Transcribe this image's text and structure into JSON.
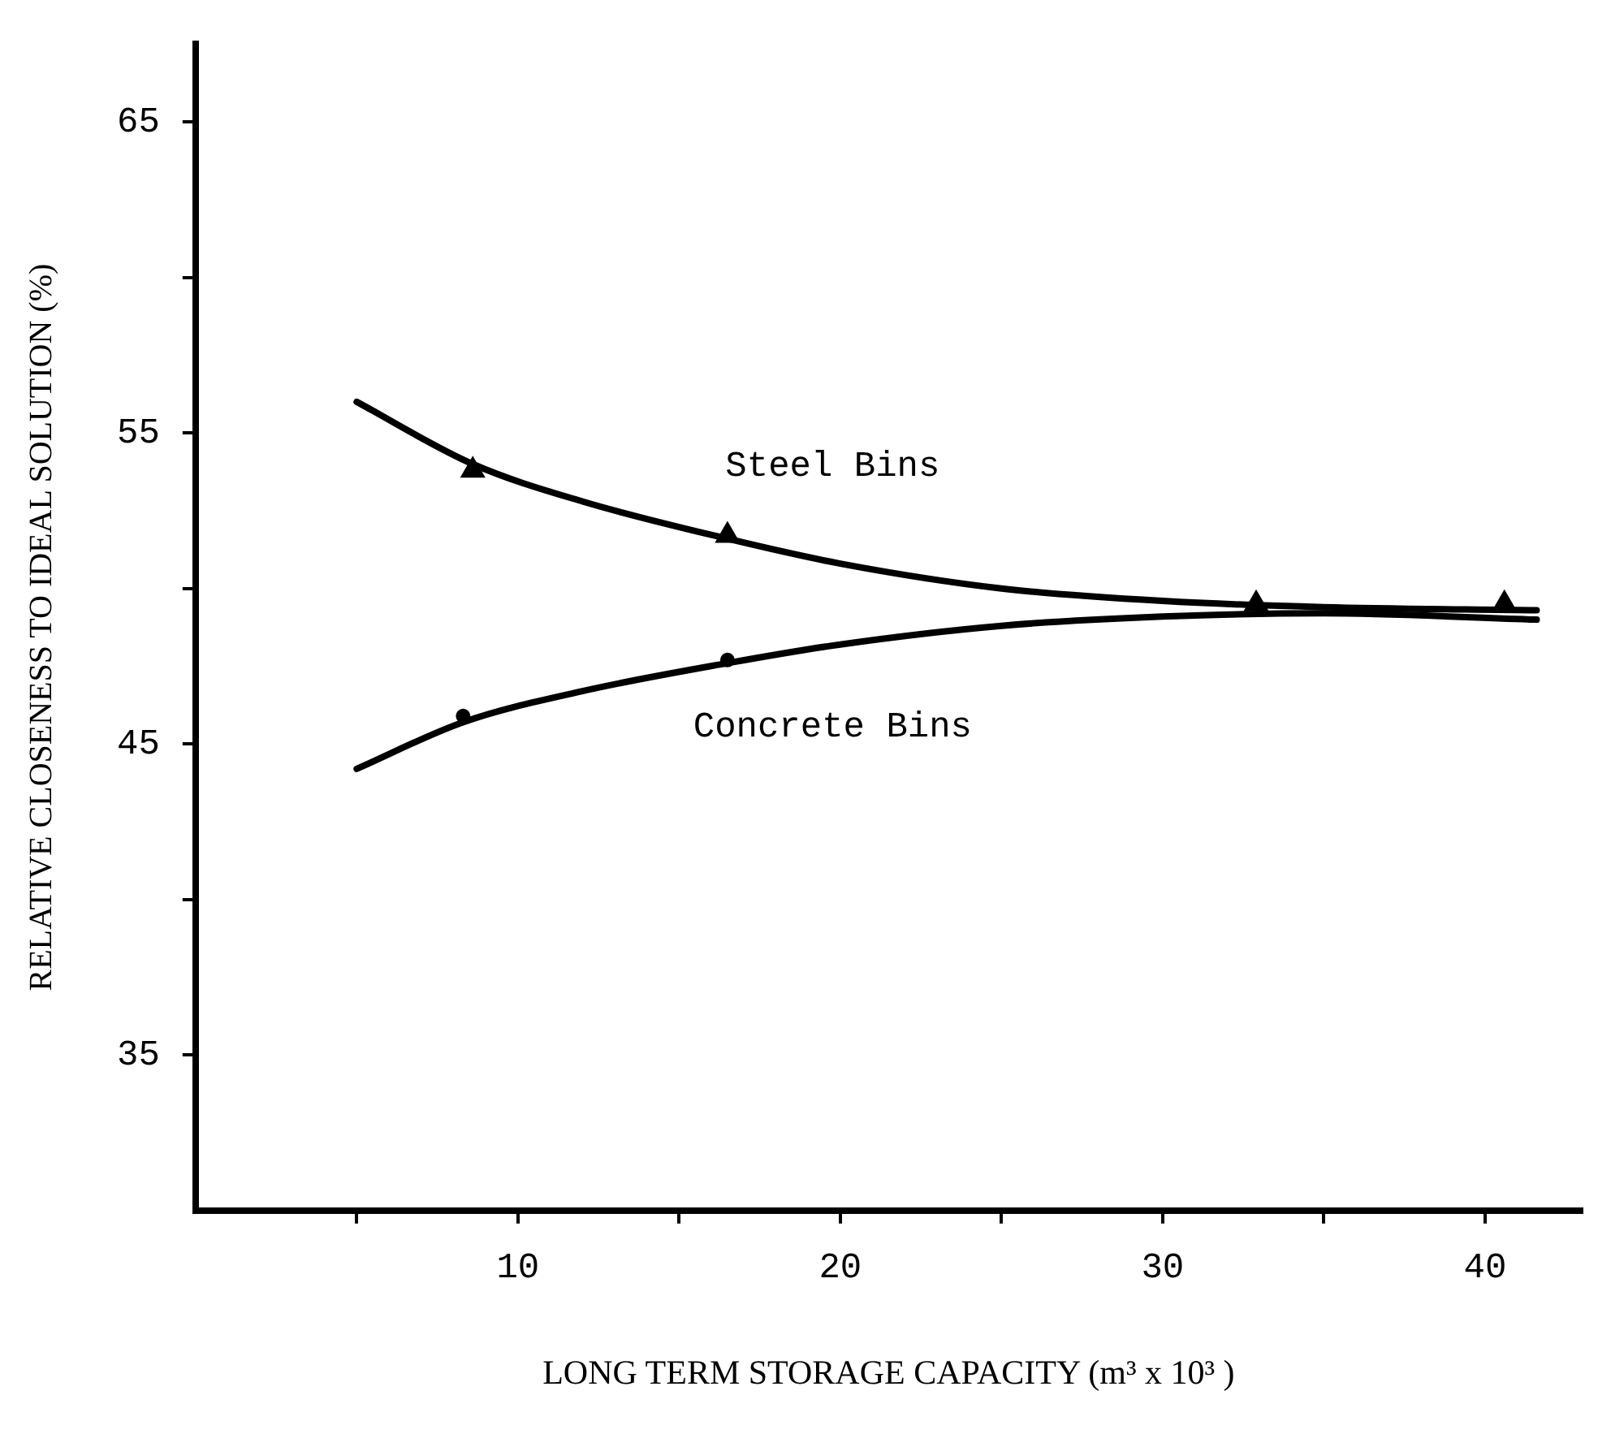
{
  "chart_data": {
    "type": "line",
    "xlabel": "LONG TERM STORAGE CAPACITY (m³ x 10³ )",
    "ylabel": "RELATIVE CLOSENESS TO IDEAL SOLUTION (%)",
    "xlim": [
      0,
      43
    ],
    "ylim": [
      30,
      67.5
    ],
    "xticks": [
      {
        "value": 5,
        "label": null
      },
      10,
      {
        "value": 15,
        "label": null
      },
      20,
      {
        "value": 25,
        "label": null
      },
      30,
      {
        "value": 35,
        "label": null
      },
      40
    ],
    "yticks": [
      35,
      {
        "value": 40,
        "label": null
      },
      45,
      {
        "value": 50,
        "label": null
      },
      55,
      {
        "value": 60,
        "label": null
      },
      65
    ],
    "grid": false,
    "legend": false,
    "series": [
      {
        "type": "line",
        "name": "Steel Bins",
        "color": "#000000",
        "marker": "none",
        "x": [
          5,
          8.6,
          12,
          16.5,
          20,
          25,
          30,
          35,
          41.6
        ],
        "values": [
          56.0,
          54.0,
          52.8,
          51.6,
          50.8,
          50.0,
          49.6,
          49.4,
          49.3
        ]
      },
      {
        "type": "line",
        "name": "Concrete Bins",
        "color": "#000000",
        "marker": "none",
        "x": [
          5,
          8.3,
          12,
          16.5,
          20,
          25,
          30,
          35,
          41.6
        ],
        "values": [
          44.2,
          45.7,
          46.7,
          47.6,
          48.2,
          48.8,
          49.1,
          49.2,
          49.0
        ]
      },
      {
        "type": "scatter",
        "color": "#000000",
        "marker": "triangle",
        "x": [
          8.6,
          16.5,
          32.9,
          40.6
        ],
        "values": [
          53.8,
          51.7,
          49.5,
          49.5
        ]
      },
      {
        "type": "scatter",
        "color": "#000000",
        "marker": "circle",
        "x": [
          8.3,
          16.5
        ],
        "values": [
          45.9,
          47.7
        ]
      }
    ]
  }
}
